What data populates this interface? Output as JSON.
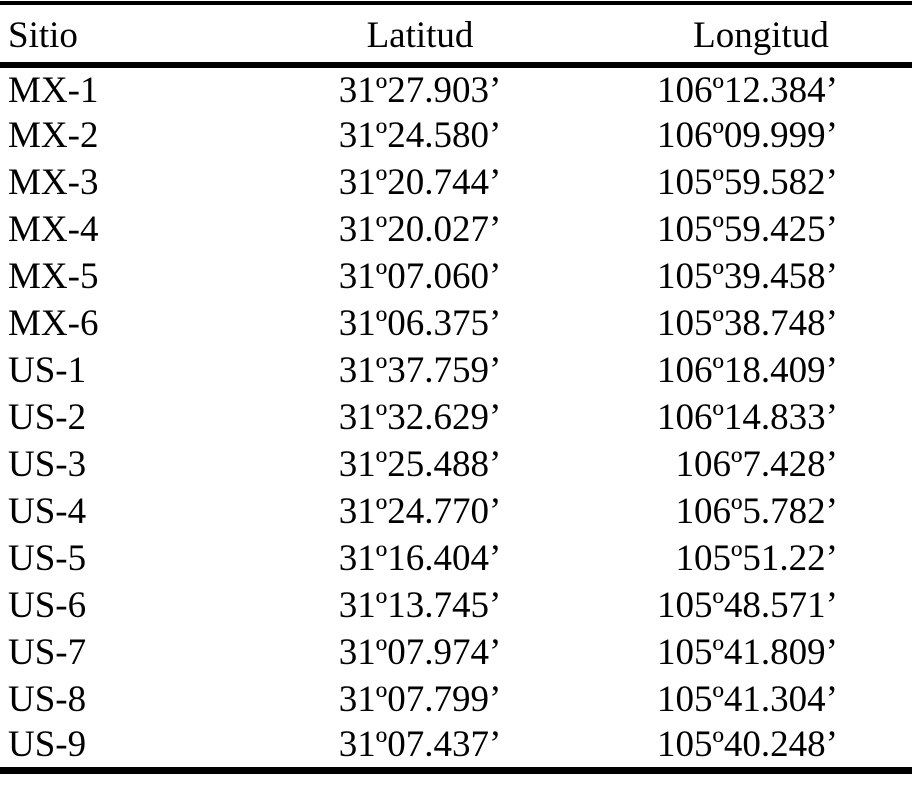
{
  "page": {
    "background_color": "#ffffff",
    "text_color": "#000000",
    "rule_color": "#000000"
  },
  "table": {
    "columns": [
      {
        "label": "Sitio"
      },
      {
        "label": "Latitud"
      },
      {
        "label": "Longitud"
      }
    ],
    "rows": [
      {
        "sitio": "MX-1",
        "latitud": "31º27.903’",
        "longitud": "106º12.384’"
      },
      {
        "sitio": "MX-2",
        "latitud": "31º24.580’",
        "longitud": "106º09.999’"
      },
      {
        "sitio": "MX-3",
        "latitud": "31º20.744’",
        "longitud": "105º59.582’"
      },
      {
        "sitio": "MX-4",
        "latitud": "31º20.027’",
        "longitud": "105º59.425’"
      },
      {
        "sitio": "MX-5",
        "latitud": "31º07.060’",
        "longitud": "105º39.458’"
      },
      {
        "sitio": "MX-6",
        "latitud": "31º06.375’",
        "longitud": "105º38.748’"
      },
      {
        "sitio": "US-1",
        "latitud": "31º37.759’",
        "longitud": "106º18.409’"
      },
      {
        "sitio": "US-2",
        "latitud": "31º32.629’",
        "longitud": "106º14.833’"
      },
      {
        "sitio": "US-3",
        "latitud": "31º25.488’",
        "longitud": "106º7.428’"
      },
      {
        "sitio": "US-4",
        "latitud": "31º24.770’",
        "longitud": "106º5.782’"
      },
      {
        "sitio": "US-5",
        "latitud": "31º16.404’",
        "longitud": "105º51.22’"
      },
      {
        "sitio": "US-6",
        "latitud": "31º13.745’",
        "longitud": "105º48.571’"
      },
      {
        "sitio": "US-7",
        "latitud": "31º07.974’",
        "longitud": "105º41.809’"
      },
      {
        "sitio": "US-8",
        "latitud": "31º07.799’",
        "longitud": "105º41.304’"
      },
      {
        "sitio": "US-9",
        "latitud": "31º07.437’",
        "longitud": "105º40.248’"
      }
    ]
  }
}
